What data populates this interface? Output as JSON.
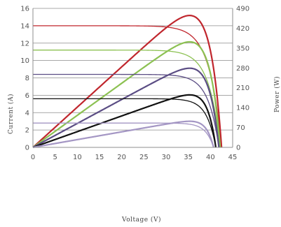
{
  "chart_data": {
    "type": "line",
    "xlabel": "Voltage (V)",
    "ylabel": "Current (A)",
    "y2label": "Power (W)",
    "xlim": [
      0,
      45
    ],
    "ylim": [
      0,
      16
    ],
    "y2lim": [
      0,
      490
    ],
    "xticks": [
      0,
      5,
      10,
      15,
      20,
      25,
      30,
      35,
      40,
      45
    ],
    "yticks": [
      0,
      2,
      4,
      6,
      8,
      10,
      12,
      14,
      16
    ],
    "y2ticks": [
      0,
      70,
      140,
      210,
      280,
      350,
      420,
      490
    ],
    "grid": "horizontal",
    "curves": [
      {
        "color": "#c0262d",
        "isc": 14.0,
        "voc": 42.5,
        "vmp": 35.3,
        "pmax": 465
      },
      {
        "color": "#8cc152",
        "isc": 11.2,
        "voc": 42.2,
        "vmp": 35.3,
        "pmax": 372
      },
      {
        "color": "#5b4d84",
        "isc": 8.4,
        "voc": 41.9,
        "vmp": 35.3,
        "pmax": 279
      },
      {
        "color": "#111111",
        "isc": 5.6,
        "voc": 41.2,
        "vmp": 35.3,
        "pmax": 185
      },
      {
        "color": "#a496c4",
        "isc": 2.8,
        "voc": 40.7,
        "vmp": 35.3,
        "pmax": 92
      }
    ]
  }
}
